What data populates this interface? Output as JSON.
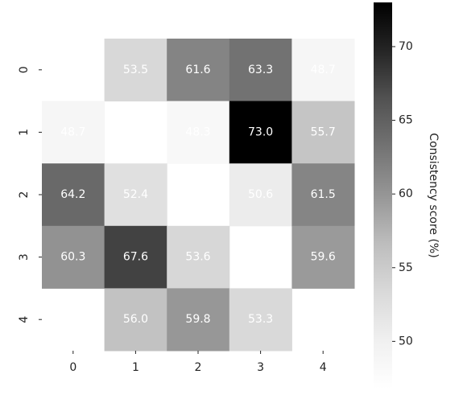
{
  "chart_data": {
    "type": "heatmap",
    "x_categories": [
      "0",
      "1",
      "2",
      "3",
      "4"
    ],
    "y_categories": [
      "0",
      "1",
      "2",
      "3",
      "4"
    ],
    "values": [
      [
        null,
        53.5,
        61.6,
        63.3,
        48.7
      ],
      [
        48.7,
        null,
        48.3,
        73.0,
        55.7
      ],
      [
        64.2,
        52.4,
        null,
        50.6,
        61.5
      ],
      [
        60.3,
        67.6,
        53.6,
        null,
        59.6
      ],
      [
        null,
        56.0,
        59.8,
        53.3,
        null
      ]
    ],
    "value_labels": [
      [
        null,
        "53.5",
        "61.6",
        "63.3",
        "48.7"
      ],
      [
        "48.7",
        null,
        "48.3",
        "73.0",
        "55.7"
      ],
      [
        "64.2",
        "52.4",
        null,
        "50.6",
        "61.5"
      ],
      [
        "60.3",
        "67.6",
        "53.6",
        null,
        "59.6"
      ],
      [
        null,
        "56.0",
        "59.8",
        "53.3",
        null
      ]
    ],
    "colormap": "Greys",
    "clim": [
      46.8,
      73.0
    ],
    "cticks": [
      50,
      55,
      60,
      65,
      70
    ],
    "colorbar_label": "Consistency score (%)"
  }
}
